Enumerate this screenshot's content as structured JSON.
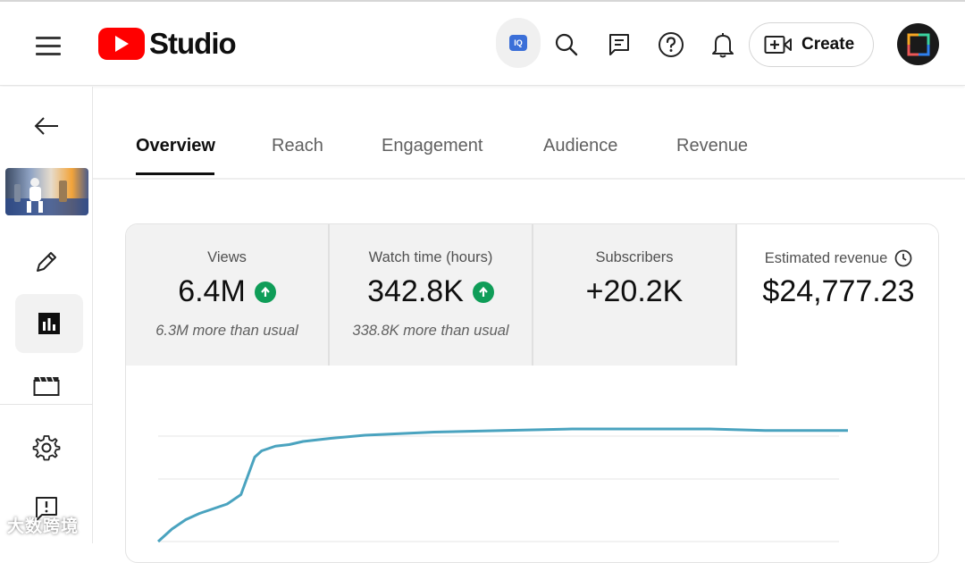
{
  "header": {
    "logo_text": "Studio",
    "iq_badge": "IQ",
    "create_label": "Create",
    "icons": [
      "menu-icon",
      "iq-extension-icon",
      "search-icon",
      "feedback-icon",
      "help-icon",
      "notifications-icon",
      "create-video-icon",
      "channel-avatar"
    ]
  },
  "sidebar": {
    "icons": [
      "back-arrow-icon",
      "video-thumbnail",
      "edit-pencil-icon",
      "analytics-icon",
      "editor-clapper-icon",
      "settings-gear-icon",
      "feedback-alert-icon"
    ]
  },
  "tabs": [
    {
      "label": "Overview",
      "active": true
    },
    {
      "label": "Reach",
      "active": false
    },
    {
      "label": "Engagement",
      "active": false
    },
    {
      "label": "Audience",
      "active": false
    },
    {
      "label": "Revenue",
      "active": false
    }
  ],
  "metrics": [
    {
      "label": "Views",
      "value": "6.4M",
      "trend": "up",
      "note": "6.3M more than usual"
    },
    {
      "label": "Watch time (hours)",
      "value": "342.8K",
      "trend": "up",
      "note": "338.8K more than usual"
    },
    {
      "label": "Subscribers",
      "value": "+20.2K"
    },
    {
      "label": "Estimated revenue",
      "value": "$24,777.23"
    }
  ],
  "colors": {
    "accent_red": "#ff0000",
    "trend_green": "#0f9d58",
    "chart_line": "#4aa3bf"
  },
  "chart_data": {
    "type": "line",
    "title": "",
    "xlabel": "",
    "ylabel": "",
    "ylim": [
      0,
      100
    ],
    "x": [
      0,
      2,
      4,
      6,
      8,
      10,
      12,
      14,
      15,
      17,
      19,
      21,
      25,
      30,
      40,
      50,
      60,
      70,
      80,
      88,
      95,
      100
    ],
    "series": [
      {
        "name": "Views",
        "values": [
          0,
          8,
          14,
          18,
          21,
          24,
          30,
          54,
          58,
          61,
          62,
          64,
          66,
          68,
          70,
          71,
          72,
          72,
          72,
          71,
          71,
          71
        ]
      }
    ]
  },
  "watermark": "大数跨境"
}
